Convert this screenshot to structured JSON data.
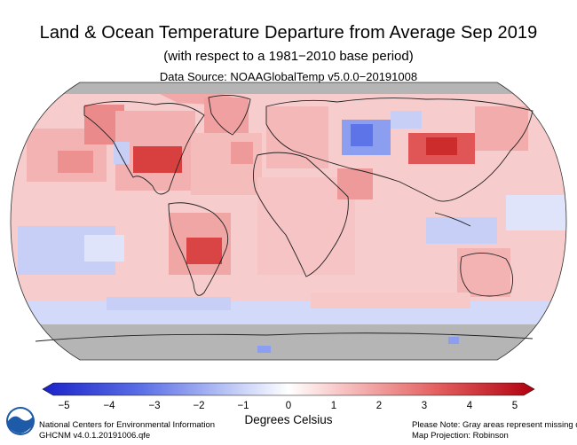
{
  "header": {
    "title": "Land & Ocean Temperature Departure from Average Sep 2019",
    "subtitle": "(with respect to a 1981−2010 base period)",
    "source": "Data Source: NOAAGlobalTemp v5.0.0−20191008"
  },
  "map": {
    "projection_note": "Map Projection: Robinson",
    "missing_color": "#b5b5b5",
    "regions": [
      {
        "name": "Arctic (missing)",
        "level": "missing"
      },
      {
        "name": "Antarctica (missing)",
        "level": "missing"
      },
      {
        "name": "Western Russia",
        "level": -2
      },
      {
        "name": "Central Siberia / Mongolia",
        "level": 3
      },
      {
        "name": "Central United States",
        "level": 3
      },
      {
        "name": "Alaska",
        "level": 2.5
      },
      {
        "name": "Central South America",
        "level": 3
      },
      {
        "name": "Southeast Pacific",
        "level": -1
      },
      {
        "name": "Southern Ocean",
        "level": -1
      },
      {
        "name": "Indonesia / Western Pacific",
        "level": -1
      },
      {
        "name": "Arabian Peninsula",
        "level": 2
      },
      {
        "name": "Northern Australia",
        "level": 1.5
      }
    ]
  },
  "colorbar": {
    "ticks": [
      "−5",
      "−4",
      "−3",
      "−2",
      "−1",
      "0",
      "1",
      "2",
      "3",
      "4",
      "5"
    ],
    "colors": [
      "#1f2fd6",
      "#3a4ee0",
      "#5d74e8",
      "#8c9ef0",
      "#bac5f7",
      "#dee3fb",
      "#fcdcdc",
      "#f8b6b6",
      "#f08a8a",
      "#e25555",
      "#c61c1c"
    ],
    "label": "Degrees Celsius"
  },
  "footer": {
    "org": "National Centers for Environmental Information",
    "dataset": "GHCNM v4.0.1.20191006.qfe",
    "note": "Please Note: Gray areas represent missing data",
    "projection": "Map Projection: Robinson"
  }
}
